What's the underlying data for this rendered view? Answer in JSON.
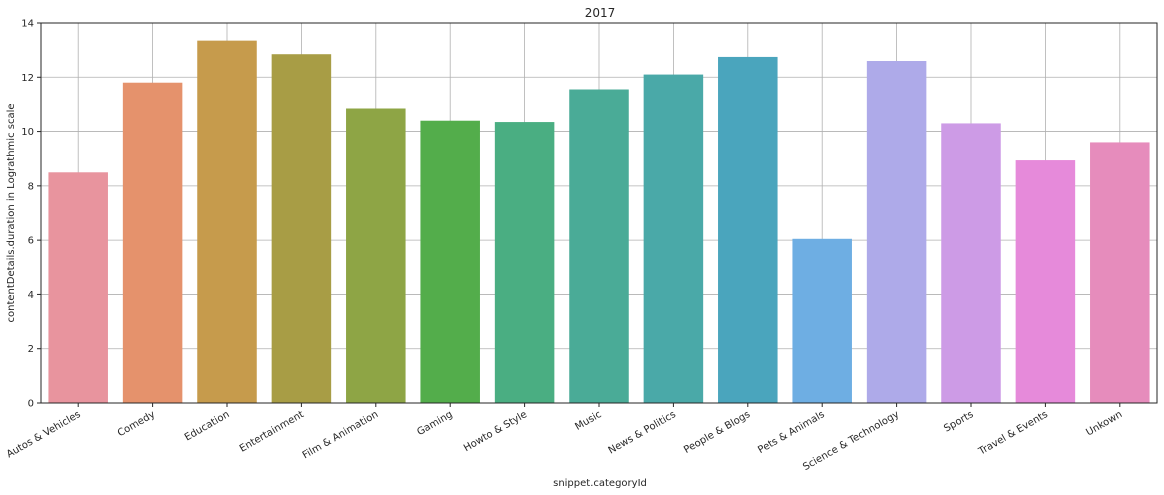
{
  "chart_data": {
    "type": "bar",
    "title": "2017",
    "xlabel": "snippet.categoryId",
    "ylabel": "contentDetails.duration in Lograthmic scale",
    "ylim": [
      0,
      14
    ],
    "yticks": [
      0,
      2,
      4,
      6,
      8,
      10,
      12,
      14
    ],
    "grid": true,
    "categories": [
      "Autos & Vehicles",
      "Comedy",
      "Education",
      "Entertainment",
      "Film & Animation",
      "Gaming",
      "Howto & Style",
      "Music",
      "News & Politics",
      "People & Blogs",
      "Pets & Animals",
      "Science & Technology",
      "Sports",
      "Travel & Events",
      "Unkown"
    ],
    "values": [
      8.5,
      11.8,
      13.35,
      12.85,
      10.85,
      10.4,
      10.35,
      11.55,
      12.1,
      12.75,
      6.05,
      12.6,
      10.3,
      8.95,
      9.6
    ],
    "colors": [
      "#e8949e",
      "#e5926c",
      "#c69b4c",
      "#a89d45",
      "#8ea545",
      "#53ad4b",
      "#4aae82",
      "#4aab97",
      "#4aa9a8",
      "#4aa5bd",
      "#6eaee3",
      "#aeaae9",
      "#cd9be6",
      "#e68ada",
      "#e68cbc"
    ]
  }
}
